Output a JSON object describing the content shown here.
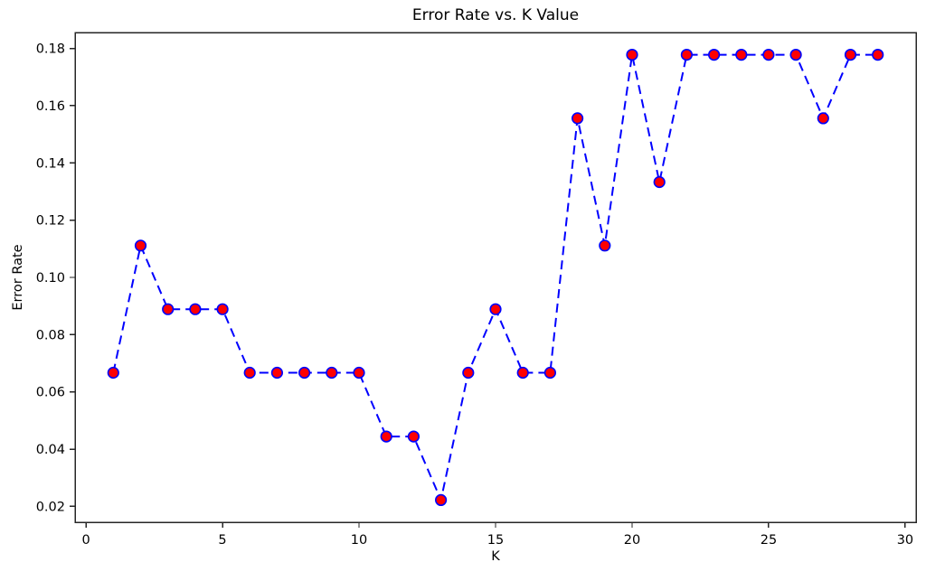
{
  "chart_data": {
    "type": "line",
    "title": "Error Rate vs. K Value",
    "xlabel": "K",
    "ylabel": "Error Rate",
    "x": [
      1,
      2,
      3,
      4,
      5,
      6,
      7,
      8,
      9,
      10,
      11,
      12,
      13,
      14,
      15,
      16,
      17,
      18,
      19,
      20,
      21,
      22,
      23,
      24,
      25,
      26,
      27,
      28,
      29
    ],
    "y": [
      0.0667,
      0.1111,
      0.0889,
      0.0889,
      0.0889,
      0.0667,
      0.0667,
      0.0667,
      0.0667,
      0.0667,
      0.0444,
      0.0444,
      0.0222,
      0.0667,
      0.0889,
      0.0667,
      0.0667,
      0.1556,
      0.1111,
      0.1778,
      0.1333,
      0.1778,
      0.1778,
      0.1778,
      0.1778,
      0.1778,
      0.1556,
      0.1778,
      0.1778
    ],
    "x_ticks": [
      0,
      5,
      10,
      15,
      20,
      25,
      30
    ],
    "y_ticks": [
      0.02,
      0.04,
      0.06,
      0.08,
      0.1,
      0.12,
      0.14,
      0.16,
      0.18
    ],
    "xlim": [
      -0.4,
      30.4
    ],
    "ylim": [
      0.014444,
      0.185556
    ],
    "grid": false,
    "legend": "none",
    "line_color": "#0000ff",
    "line_style": "dashed",
    "marker": "circle",
    "marker_face_color": "#ff0000",
    "marker_edge_color": "#0000ff",
    "axes_color": "#262626"
  }
}
